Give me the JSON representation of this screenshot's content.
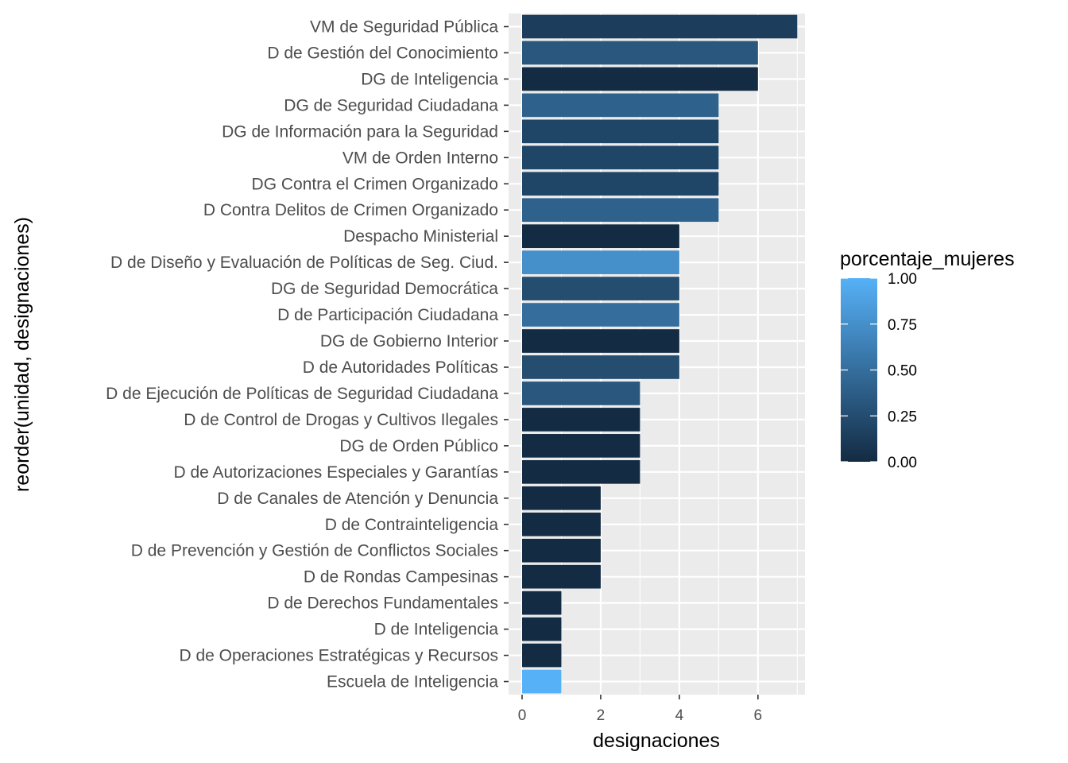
{
  "chart_data": {
    "type": "bar",
    "orientation": "horizontal",
    "xlabel": "designaciones",
    "ylabel": "reorder(unidad, designaciones)",
    "xlim": [
      0,
      7.3
    ],
    "x_ticks": [
      0,
      2,
      4,
      6
    ],
    "grid": true,
    "legend_position": "right",
    "legend": {
      "title": "porcentaje_mujeres",
      "type": "colorbar",
      "range": [
        0,
        1
      ],
      "ticks": [
        "0.00",
        "0.25",
        "0.50",
        "0.75",
        "1.00"
      ],
      "tick_values": [
        0,
        0.25,
        0.5,
        0.75,
        1
      ],
      "color_low": "#132B43",
      "color_high": "#56B1F7"
    },
    "categories": [
      "VM de Seguridad Pública",
      "D de Gestión del Conocimiento",
      "DG de Inteligencia",
      "DG de Seguridad Ciudadana",
      "DG de Información para la Seguridad",
      "VM de Orden Interno",
      "DG Contra el Crimen Organizado",
      "D Contra Delitos de Crimen Organizado",
      "Despacho Ministerial",
      "D de Diseño y Evaluación de Políticas de Seg. Ciud.",
      "DG de Seguridad Democrática",
      "D de Participación Ciudadana",
      "DG de Gobierno Interior",
      "D de Autoridades Políticas",
      "D de Ejecución de Políticas de Seguridad Ciudadana",
      "D de Control de Drogas y Cultivos Ilegales",
      "DG de Orden Público",
      "D de Autorizaciones Especiales y Garantías",
      "D de Canales de Atención y Denuncia",
      "D de Contrainteligencia",
      "D de Prevención y Gestión de Conflictos Sociales",
      "D de Rondas Campesinas",
      "D de Derechos Fundamentales",
      "D de Inteligencia",
      "D de Operaciones Estratégicas y Recursos",
      "Escuela de Inteligencia"
    ],
    "values": [
      7,
      6,
      6,
      5,
      5,
      5,
      5,
      5,
      4,
      4,
      4,
      4,
      4,
      4,
      3,
      3,
      3,
      3,
      2,
      2,
      2,
      2,
      1,
      1,
      1,
      1
    ],
    "porcentaje_mujeres": [
      0.14,
      0.33,
      0.0,
      0.4,
      0.2,
      0.2,
      0.2,
      0.4,
      0.0,
      0.75,
      0.25,
      0.5,
      0.0,
      0.25,
      0.33,
      0.0,
      0.0,
      0.0,
      0.0,
      0.0,
      0.0,
      0.0,
      0.0,
      0.0,
      0.0,
      1.0
    ]
  }
}
